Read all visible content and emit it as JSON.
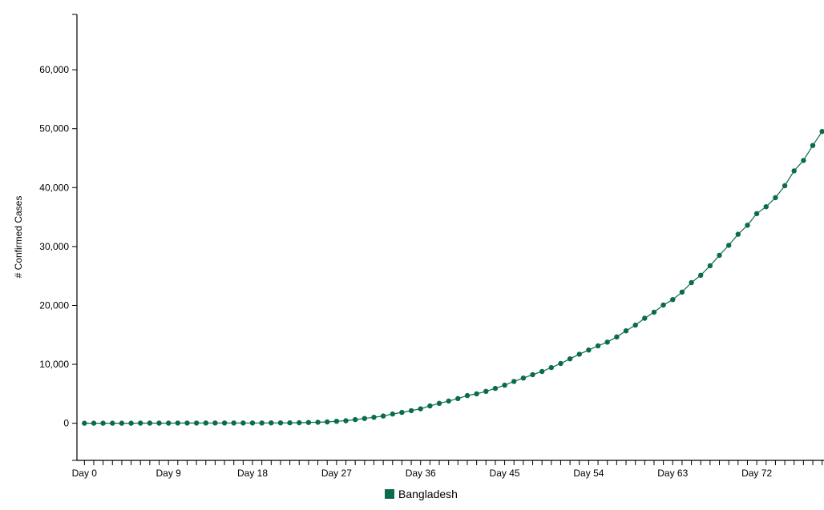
{
  "chart_data": {
    "type": "line",
    "title": "",
    "xlabel": "",
    "ylabel": "# Confirmed Cases",
    "ylim": [
      -6300,
      69400
    ],
    "xlim": [
      -0.8,
      79.2
    ],
    "y_ticks": [
      0,
      10000,
      20000,
      30000,
      40000,
      50000,
      60000
    ],
    "y_tick_labels": [
      "0",
      "10,000",
      "20,000",
      "30,000",
      "40,000",
      "50,000",
      "60,000"
    ],
    "x_ticks": [
      0,
      9,
      18,
      27,
      36,
      45,
      54,
      63,
      72
    ],
    "x_tick_labels": [
      "Day 0",
      "Day 9",
      "Day 18",
      "Day 27",
      "Day 36",
      "Day 45",
      "Day 54",
      "Day 63",
      "Day 72"
    ],
    "x_minor_ticks": 80,
    "grid": false,
    "legend_position": "bottom-center",
    "series": [
      {
        "name": "Bangladesh",
        "color": "#0a6b4f",
        "x": [
          0,
          1,
          2,
          3,
          4,
          5,
          6,
          7,
          8,
          9,
          10,
          11,
          12,
          13,
          14,
          15,
          16,
          17,
          18,
          19,
          20,
          21,
          22,
          23,
          24,
          25,
          26,
          27,
          28,
          29,
          30,
          31,
          32,
          33,
          34,
          35,
          36,
          37,
          38,
          39,
          40,
          41,
          42,
          43,
          44,
          45,
          46,
          47,
          48,
          49,
          50,
          51,
          52,
          53,
          54,
          55,
          56,
          57,
          58,
          59,
          60,
          61,
          62,
          63,
          64,
          65,
          66,
          67,
          68,
          69,
          70,
          71,
          72,
          73,
          74,
          75,
          76,
          77,
          78,
          79
        ],
        "values": [
          3,
          3,
          3,
          5,
          8,
          10,
          14,
          17,
          20,
          24,
          27,
          33,
          39,
          44,
          44,
          48,
          48,
          48,
          49,
          51,
          54,
          61,
          70,
          88,
          123,
          164,
          218,
          330,
          424,
          621,
          803,
          1012,
          1231,
          1572,
          1838,
          2144,
          2456,
          2948,
          3382,
          3772,
          4186,
          4689,
          4998,
          5416,
          5913,
          6462,
          7103,
          7667,
          8238,
          8790,
          9455,
          10143,
          10929,
          11719,
          12425,
          13134,
          13770,
          14657,
          15691,
          16660,
          17822,
          18863,
          20065,
          20995,
          22268,
          23870,
          25121,
          26738,
          28511,
          30205,
          32078,
          33610,
          35585,
          36751,
          38292,
          40321,
          42844,
          44608,
          47153,
          49534
        ]
      }
    ]
  }
}
